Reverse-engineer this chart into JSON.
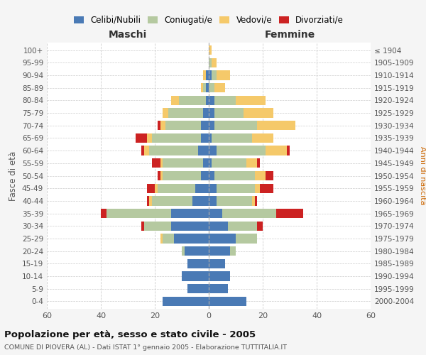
{
  "age_groups": [
    "100+",
    "95-99",
    "90-94",
    "85-89",
    "80-84",
    "75-79",
    "70-74",
    "65-69",
    "60-64",
    "55-59",
    "50-54",
    "45-49",
    "40-44",
    "35-39",
    "30-34",
    "25-29",
    "20-24",
    "15-19",
    "10-14",
    "5-9",
    "0-4"
  ],
  "birth_years": [
    "≤ 1904",
    "1905-1909",
    "1910-1914",
    "1915-1919",
    "1920-1924",
    "1925-1929",
    "1930-1934",
    "1935-1939",
    "1940-1944",
    "1945-1949",
    "1950-1954",
    "1955-1959",
    "1960-1964",
    "1965-1969",
    "1970-1974",
    "1975-1979",
    "1980-1984",
    "1985-1989",
    "1990-1994",
    "1995-1999",
    "2000-2004"
  ],
  "colors": {
    "celibi": "#4a7ab5",
    "coniugati": "#b5c9a0",
    "vedovi": "#f5c96a",
    "divorziati": "#cc2222"
  },
  "males": {
    "celibi": [
      0,
      0,
      1,
      1,
      1,
      2,
      3,
      3,
      4,
      2,
      3,
      5,
      6,
      14,
      14,
      13,
      9,
      8,
      10,
      8,
      17
    ],
    "coniugati": [
      0,
      0,
      0,
      1,
      10,
      13,
      13,
      18,
      18,
      15,
      14,
      14,
      15,
      24,
      10,
      4,
      1,
      0,
      0,
      0,
      0
    ],
    "vedovi": [
      0,
      0,
      1,
      1,
      3,
      2,
      2,
      2,
      2,
      1,
      1,
      1,
      1,
      0,
      0,
      1,
      0,
      0,
      0,
      0,
      0
    ],
    "divorziati": [
      0,
      0,
      0,
      0,
      0,
      0,
      1,
      4,
      1,
      3,
      1,
      3,
      1,
      2,
      1,
      0,
      0,
      0,
      0,
      0,
      0
    ]
  },
  "females": {
    "celibi": [
      0,
      0,
      1,
      0,
      2,
      2,
      2,
      1,
      3,
      1,
      2,
      3,
      3,
      5,
      7,
      10,
      8,
      6,
      8,
      7,
      14
    ],
    "coniugati": [
      0,
      1,
      2,
      2,
      8,
      11,
      16,
      15,
      18,
      13,
      15,
      14,
      13,
      20,
      11,
      8,
      2,
      0,
      0,
      0,
      0
    ],
    "vedovi": [
      1,
      2,
      5,
      4,
      11,
      11,
      14,
      8,
      8,
      4,
      4,
      2,
      1,
      0,
      0,
      0,
      0,
      0,
      0,
      0,
      0
    ],
    "divorziati": [
      0,
      0,
      0,
      0,
      0,
      0,
      0,
      0,
      1,
      1,
      3,
      5,
      1,
      10,
      2,
      0,
      0,
      0,
      0,
      0,
      0
    ]
  },
  "xlim": 60,
  "title": "Popolazione per età, sesso e stato civile - 2005",
  "subtitle": "COMUNE DI PIOVERA (AL) - Dati ISTAT 1° gennaio 2005 - Elaborazione TUTTITALIA.IT",
  "ylabel_left": "Fasce di età",
  "ylabel_right": "Anni di nascita",
  "xlabel_left": "Maschi",
  "xlabel_right": "Femmine",
  "bg_color": "#f5f5f5",
  "plot_bg": "#ffffff",
  "grid_color": "#cccccc"
}
